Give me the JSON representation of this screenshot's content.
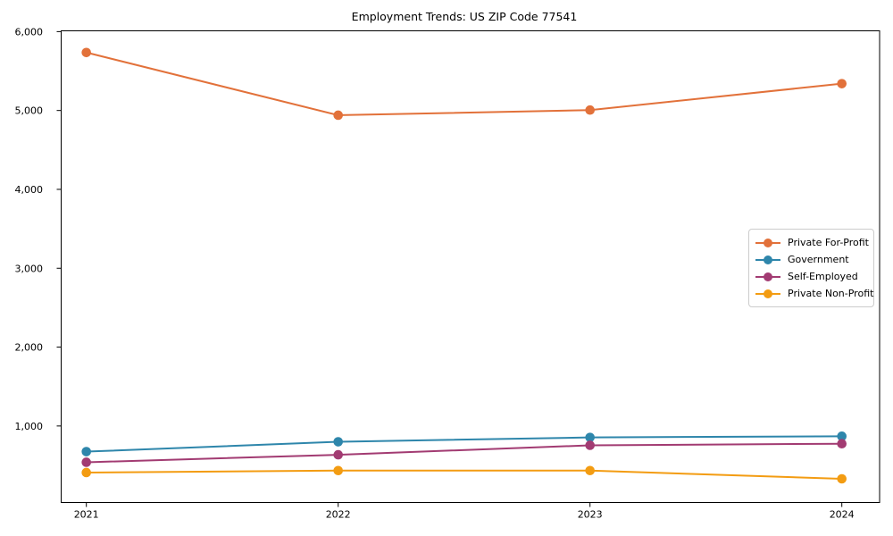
{
  "chart_data": {
    "type": "line",
    "title": "Employment Trends: US ZIP Code 77541",
    "xlabel": "",
    "ylabel": "",
    "x": [
      2021,
      2022,
      2023,
      2024
    ],
    "x_tick_labels": [
      "2021",
      "2022",
      "2023",
      "2024"
    ],
    "y_ticks": [
      1000,
      2000,
      3000,
      4000,
      5000,
      6000
    ],
    "y_tick_labels": [
      "1,000",
      "2,000",
      "3,000",
      "4,000",
      "5,000",
      "6,000"
    ],
    "xlim": [
      2020.9,
      2024.15
    ],
    "ylim": [
      30,
      6010
    ],
    "grid": false,
    "legend_position": "center right",
    "marker": "o",
    "axis_color": "#000000",
    "background_color": "#ffffff",
    "series": [
      {
        "name": "Private For-Profit",
        "color": "#e2713a",
        "values": [
          5735,
          4940,
          5005,
          5340
        ]
      },
      {
        "name": "Government",
        "color": "#2e86ab",
        "values": [
          675,
          800,
          855,
          870
        ]
      },
      {
        "name": "Self-Employed",
        "color": "#a23b72",
        "values": [
          540,
          635,
          755,
          775
        ]
      },
      {
        "name": "Private Non-Profit",
        "color": "#f39c12",
        "values": [
          410,
          435,
          435,
          330
        ]
      }
    ]
  }
}
